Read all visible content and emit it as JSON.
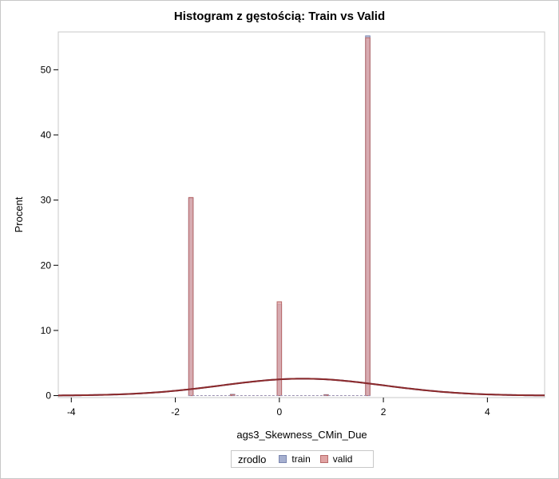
{
  "chart_data": {
    "type": "bar",
    "title": "Histogram z gęstością: Train vs Valid",
    "xlabel": "ags3_Skewness_CMin_Due",
    "ylabel": "Procent",
    "xlim": [
      -4.25,
      5.1
    ],
    "ylim": [
      -0.3,
      55.8
    ],
    "x_ticks": [
      -4,
      -2,
      0,
      2,
      4
    ],
    "y_ticks": [
      0,
      10,
      20,
      30,
      40,
      50
    ],
    "bin_width": 0.085,
    "legend": {
      "title": "zrodlo",
      "placement": "bottom-center"
    },
    "series": [
      {
        "name": "train",
        "color": "#a5afcf",
        "x": [
          -1.7,
          -0.9,
          0.0,
          0.9,
          1.7
        ],
        "values": [
          30.3,
          0.2,
          14.0,
          0.15,
          55.2
        ]
      },
      {
        "name": "valid",
        "color": "#e0a3a3",
        "x": [
          -1.7,
          -0.9,
          0.0,
          0.9,
          1.7
        ],
        "values": [
          30.4,
          0.15,
          14.4,
          0.1,
          54.9
        ]
      }
    ],
    "density": {
      "type": "normal",
      "mean": 0.45,
      "sd": 1.55,
      "scale_percent": 2.6,
      "color": "#8c2a2a"
    }
  }
}
